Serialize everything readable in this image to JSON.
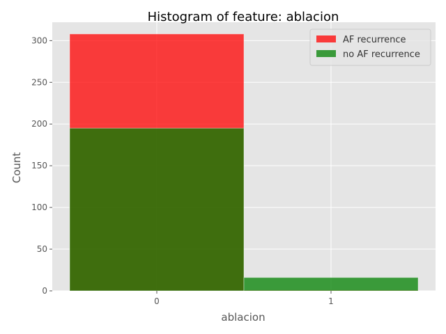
{
  "chart_data": {
    "type": "bar",
    "title": "Histogram of feature: ablacion",
    "xlabel": "ablacion",
    "ylabel": "Count",
    "categories": [
      "0",
      "1"
    ],
    "x_ticks": [
      "0",
      "1"
    ],
    "y_ticks": [
      "0",
      "50",
      "100",
      "150",
      "200",
      "250",
      "300"
    ],
    "ylim": [
      0,
      322
    ],
    "grid": true,
    "legend_position": "top-right",
    "series": [
      {
        "name": "AF recurrence",
        "values": [
          308,
          1
        ],
        "color": "#ff0000",
        "opacity": 0.75
      },
      {
        "name": "no AF recurrence",
        "values": [
          195,
          16
        ],
        "color": "#008000",
        "opacity": 0.75
      }
    ],
    "background_color": "#e5e5e5"
  }
}
